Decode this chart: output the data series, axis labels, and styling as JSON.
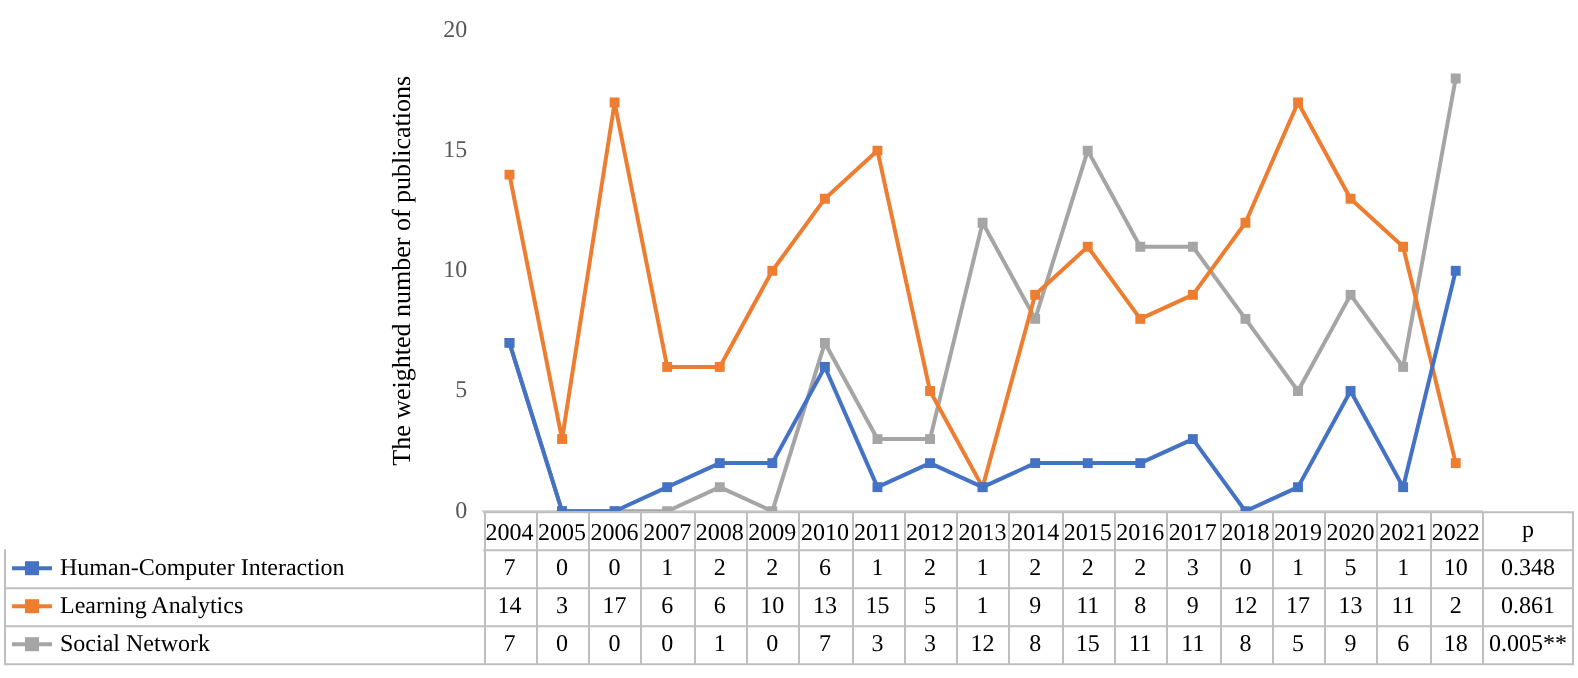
{
  "chart_data": {
    "type": "line",
    "ylabel": "The weighted number of publications",
    "categories": [
      "2004",
      "2005",
      "2006",
      "2007",
      "2008",
      "2009",
      "2010",
      "2011",
      "2012",
      "2013",
      "2014",
      "2015",
      "2016",
      "2017",
      "2018",
      "2019",
      "2020",
      "2021",
      "2022"
    ],
    "series": [
      {
        "name": "Human-Computer Interaction",
        "color": "#4472c4",
        "values": [
          7,
          0,
          0,
          1,
          2,
          2,
          6,
          1,
          2,
          1,
          2,
          2,
          2,
          3,
          0,
          1,
          5,
          1,
          10
        ]
      },
      {
        "name": "Learning Analytics",
        "color": "#ed7d31",
        "values": [
          14,
          3,
          17,
          6,
          6,
          10,
          13,
          15,
          5,
          1,
          9,
          11,
          8,
          9,
          12,
          17,
          13,
          11,
          2
        ]
      },
      {
        "name": "Social Network",
        "color": "#a5a5a5",
        "values": [
          7,
          0,
          0,
          0,
          1,
          0,
          7,
          3,
          3,
          12,
          8,
          15,
          11,
          11,
          8,
          5,
          9,
          6,
          18
        ]
      }
    ],
    "ylim": [
      0,
      20
    ],
    "yticks": [
      0,
      5,
      10,
      15,
      20
    ],
    "grid": false,
    "legend": "bottom left",
    "marker": "square",
    "line_style": "solid",
    "data_labels": true,
    "annotations": [
      "p",
      "0.348",
      "0.861",
      "0.005**"
    ]
  }
}
